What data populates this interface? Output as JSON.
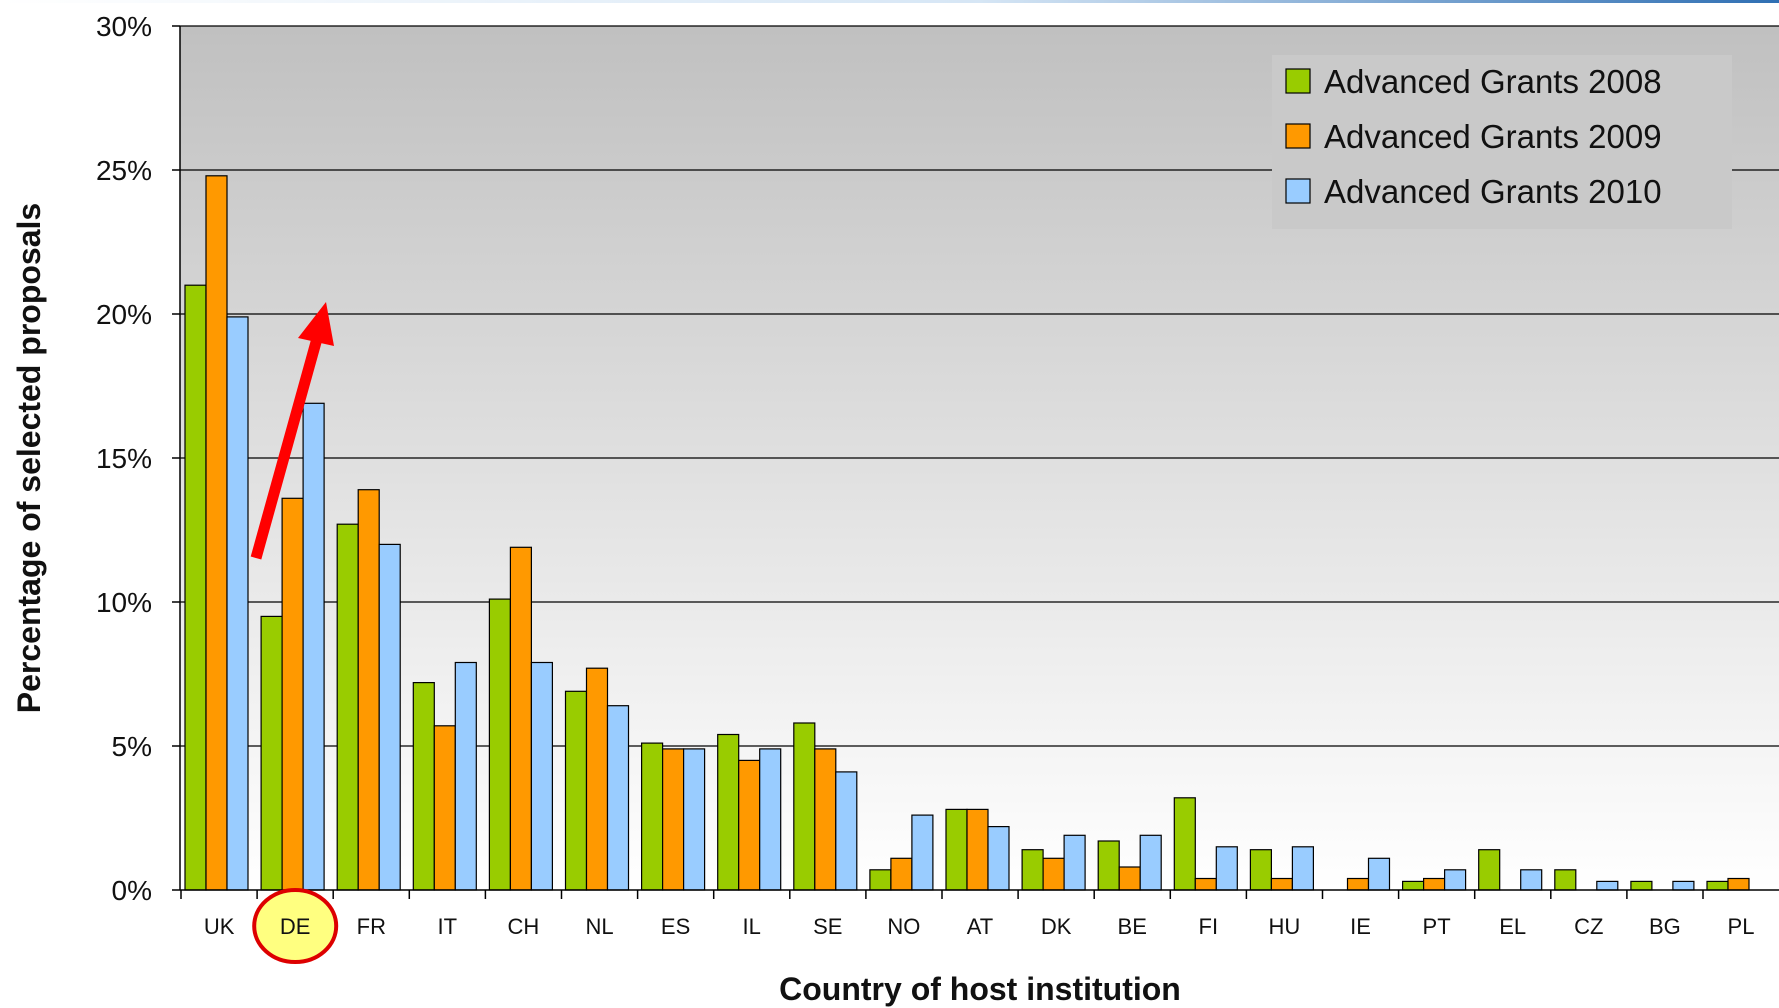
{
  "chart_data": {
    "type": "bar",
    "title": "",
    "xlabel": "Country of host institution",
    "ylabel": "Percentage of selected proposals",
    "ylim": [
      0,
      30
    ],
    "y_ticks": [
      "0%",
      "5%",
      "10%",
      "15%",
      "20%",
      "25%",
      "30%"
    ],
    "y_tick_values": [
      0,
      5,
      10,
      15,
      20,
      25,
      30
    ],
    "grid": true,
    "legend_position": "top-right",
    "categories": [
      "UK",
      "DE",
      "FR",
      "IT",
      "CH",
      "NL",
      "ES",
      "IL",
      "SE",
      "NO",
      "AT",
      "DK",
      "BE",
      "FI",
      "HU",
      "IE",
      "PT",
      "EL",
      "CZ",
      "BG",
      "PL"
    ],
    "series": [
      {
        "name": "Advanced Grants 2008",
        "color": "#99cc00",
        "values": [
          21.0,
          9.5,
          12.7,
          7.2,
          10.1,
          6.9,
          5.1,
          5.4,
          5.8,
          0.7,
          2.8,
          1.4,
          1.7,
          3.2,
          1.4,
          0.0,
          0.3,
          1.4,
          0.7,
          0.3,
          0.3
        ]
      },
      {
        "name": "Advanced Grants 2009",
        "color": "#ff9900",
        "values": [
          24.8,
          13.6,
          13.9,
          5.7,
          11.9,
          7.7,
          4.9,
          4.5,
          4.9,
          1.1,
          2.8,
          1.1,
          0.8,
          0.4,
          0.4,
          0.4,
          0.4,
          0.0,
          0.0,
          0.0,
          0.4
        ]
      },
      {
        "name": "Advanced Grants 2010",
        "color": "#99ccff",
        "values": [
          19.9,
          16.9,
          12.0,
          7.9,
          7.9,
          6.4,
          4.9,
          4.9,
          4.1,
          2.6,
          2.2,
          1.9,
          1.9,
          1.5,
          1.5,
          1.1,
          0.7,
          0.7,
          0.3,
          0.3,
          0.0
        ]
      }
    ],
    "highlighted_category": "DE",
    "highlight_color": "#ffff80",
    "highlight_ring_color": "#dd0000",
    "arrow_color": "#ff0000",
    "plot_background_top": "#c0c0c0",
    "plot_background_bottom": "#ffffff"
  }
}
